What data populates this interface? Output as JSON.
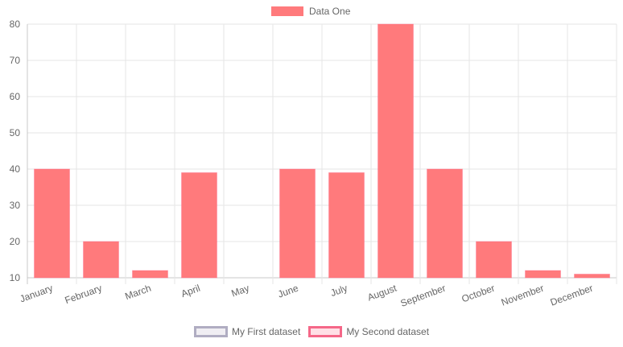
{
  "chart_data": {
    "type": "bar",
    "categories": [
      "January",
      "February",
      "March",
      "April",
      "May",
      "June",
      "July",
      "August",
      "September",
      "October",
      "November",
      "December"
    ],
    "series": [
      {
        "name": "Data One",
        "values": [
          40,
          20,
          12,
          39,
          10,
          40,
          39,
          80,
          40,
          20,
          12,
          11
        ]
      }
    ],
    "ylim": [
      10,
      80
    ],
    "yticks": [
      10,
      20,
      30,
      40,
      50,
      60,
      70,
      80
    ],
    "grid": true,
    "legend_top": "top-center",
    "legend_bottom": "bottom-center"
  },
  "legend_top": {
    "label": "Data One",
    "color": "#ff7a7c"
  },
  "legend_bottom": [
    {
      "label": "My First dataset",
      "fill": "#f0eef3",
      "stroke": "#b0adc2"
    },
    {
      "label": "My Second dataset",
      "fill": "#ffe0e6",
      "stroke": "#f56788"
    }
  ]
}
